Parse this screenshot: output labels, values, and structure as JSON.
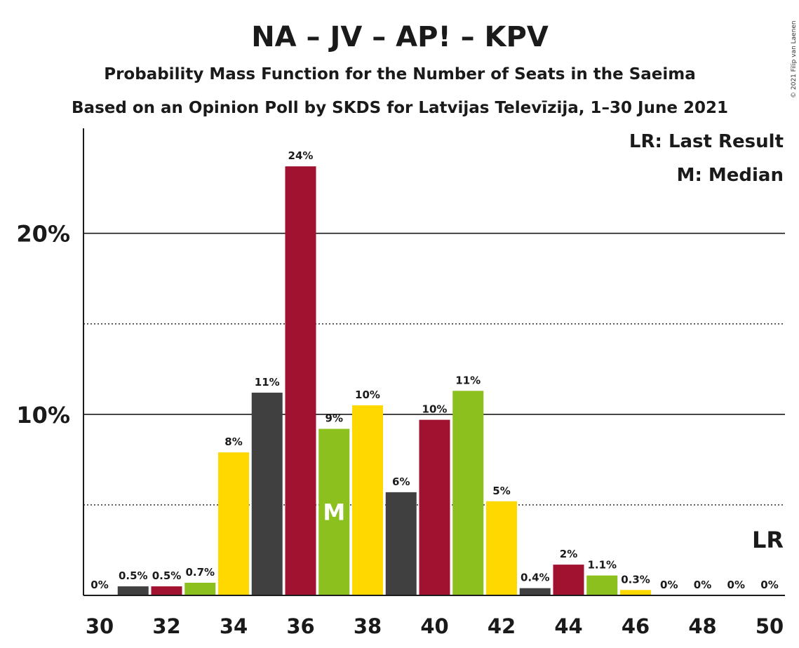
{
  "copyright": "© 2021 Filip van Laenen",
  "chart_data": {
    "type": "bar",
    "title": "NA – JV – AP! – KPV",
    "subtitle": "Probability Mass Function for the Number of Seats in the Saeima",
    "subtitle2": "Based on an Opinion Poll by SKDS for Latvijas Televīzija, 1–30 June 2021",
    "legend": [
      "LR: Last Result",
      "M: Median"
    ],
    "ylim": [
      0,
      25.8
    ],
    "yticks": [
      {
        "value": 10,
        "label": "10%"
      },
      {
        "value": 20,
        "label": "20%"
      }
    ],
    "ygrid_dotted": [
      5,
      15
    ],
    "xticks": [
      "30",
      "32",
      "34",
      "36",
      "38",
      "40",
      "42",
      "44",
      "46",
      "48",
      "50"
    ],
    "colors": {
      "dark": "#404040",
      "red": "#a0122f",
      "green": "#8cc01e",
      "yellow": "#ffd800"
    },
    "bars": [
      {
        "seats": 30,
        "value": 0,
        "label": "0%",
        "color": "dark"
      },
      {
        "seats": 31,
        "value": 0.5,
        "label": "0.5%",
        "color": "dark"
      },
      {
        "seats": 32,
        "value": 0.5,
        "label": "0.5%",
        "color": "red"
      },
      {
        "seats": 33,
        "value": 0.7,
        "label": "0.7%",
        "color": "green"
      },
      {
        "seats": 34,
        "value": 7.9,
        "label": "8%",
        "color": "yellow"
      },
      {
        "seats": 35,
        "value": 11.2,
        "label": "11%",
        "color": "dark"
      },
      {
        "seats": 36,
        "value": 23.7,
        "label": "24%",
        "color": "red"
      },
      {
        "seats": 37,
        "value": 9.2,
        "label": "9%",
        "color": "green"
      },
      {
        "seats": 38,
        "value": 10.5,
        "label": "10%",
        "color": "yellow"
      },
      {
        "seats": 39,
        "value": 5.7,
        "label": "6%",
        "color": "dark"
      },
      {
        "seats": 40,
        "value": 9.7,
        "label": "10%",
        "color": "red"
      },
      {
        "seats": 41,
        "value": 11.3,
        "label": "11%",
        "color": "green"
      },
      {
        "seats": 42,
        "value": 5.2,
        "label": "5%",
        "color": "yellow"
      },
      {
        "seats": 43,
        "value": 0.4,
        "label": "0.4%",
        "color": "dark"
      },
      {
        "seats": 44,
        "value": 1.7,
        "label": "2%",
        "color": "red"
      },
      {
        "seats": 45,
        "value": 1.1,
        "label": "1.1%",
        "color": "green"
      },
      {
        "seats": 46,
        "value": 0.3,
        "label": "0.3%",
        "color": "yellow"
      },
      {
        "seats": 47,
        "value": 0,
        "label": "0%",
        "color": "dark"
      },
      {
        "seats": 48,
        "value": 0,
        "label": "0%",
        "color": "red"
      },
      {
        "seats": 49,
        "value": 0,
        "label": "0%",
        "color": "green"
      },
      {
        "seats": 50,
        "value": 0,
        "label": "0%",
        "color": "yellow"
      }
    ],
    "median": {
      "seats": 37,
      "label": "M"
    },
    "last_result": {
      "seats": 50,
      "label": "LR"
    }
  }
}
